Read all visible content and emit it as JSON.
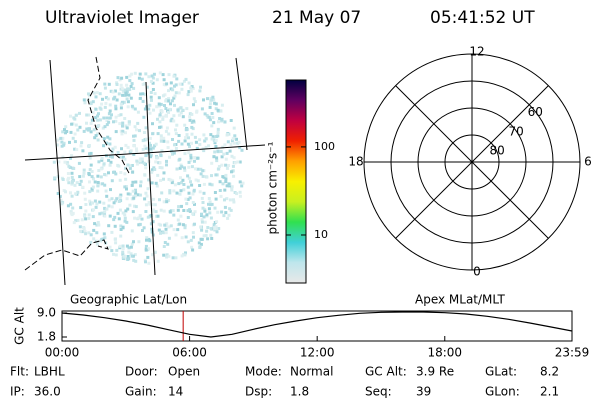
{
  "header": {
    "title": "Ultraviolet Imager",
    "date": "21 May 07",
    "time": "05:41:52 UT"
  },
  "chart_data": [
    {
      "type": "colorbar",
      "label": "photon cm⁻²s⁻¹",
      "log_scale": true,
      "ylim": [
        2.85,
        575
      ],
      "yticks": [
        10,
        100
      ],
      "colors": [
        "#e8e8e8",
        "#bfe6ec",
        "#40d0d8",
        "#30e050",
        "#c8f020",
        "#f8f000",
        "#ffa000",
        "#f02000",
        "#c00040",
        "#600060",
        "#000040"
      ]
    },
    {
      "type": "polar",
      "rlim": [
        90,
        50
      ],
      "rticks": [
        80,
        70,
        60
      ],
      "thetaticks": [
        12,
        18,
        6,
        0
      ]
    },
    {
      "type": "line",
      "ylabel": "GC Alt",
      "annotations": [
        "Geographic Lat/Lon",
        "Apex MLat/MLT"
      ],
      "x": [
        0,
        1,
        2,
        3,
        4,
        5,
        6,
        7,
        8,
        9,
        10,
        11,
        12,
        13,
        14,
        15,
        16,
        17,
        18,
        19,
        20,
        21,
        22,
        23,
        23.983
      ],
      "values": [
        9.0,
        8.4,
        7.6,
        6.6,
        5.4,
        4.0,
        2.6,
        1.8,
        2.6,
        4.1,
        5.5,
        6.6,
        7.6,
        8.3,
        8.9,
        9.2,
        9.3,
        9.3,
        9.1,
        8.7,
        8.0,
        7.1,
        6.0,
        4.8,
        3.6
      ],
      "color": "#000000",
      "marker_x": 5.698,
      "marker_color": "#c00000",
      "xlim": [
        0,
        23.983
      ],
      "ylim": [
        0.6,
        9.6
      ],
      "xticks": [
        {
          "value": 0,
          "label": "00:00"
        },
        {
          "value": 6,
          "label": "06:00"
        },
        {
          "value": 12,
          "label": "12:00"
        },
        {
          "value": 18,
          "label": "18:00"
        },
        {
          "value": 23.983,
          "label": "23:59"
        }
      ],
      "yticks": [
        1.8,
        {
          "value": 9,
          "label": "9.0"
        }
      ]
    }
  ],
  "info": [
    [
      {
        "label": "Flt:",
        "value": "LBHL"
      },
      {
        "label": "Door:",
        "value": "Open"
      },
      {
        "label": "Mode:",
        "value": "Normal"
      },
      {
        "label": "GC Alt:",
        "value": "3.9 Re"
      },
      {
        "label": "GLat:",
        "value": "8.2"
      }
    ],
    [
      {
        "label": "IP:",
        "value": "36.0"
      },
      {
        "label": "Gain:",
        "value": "14"
      },
      {
        "label": "Dsp:",
        "value": "1.8"
      },
      {
        "label": "Seq:",
        "value": "39"
      },
      {
        "label": "GLon:",
        "value": "2.1"
      }
    ]
  ]
}
